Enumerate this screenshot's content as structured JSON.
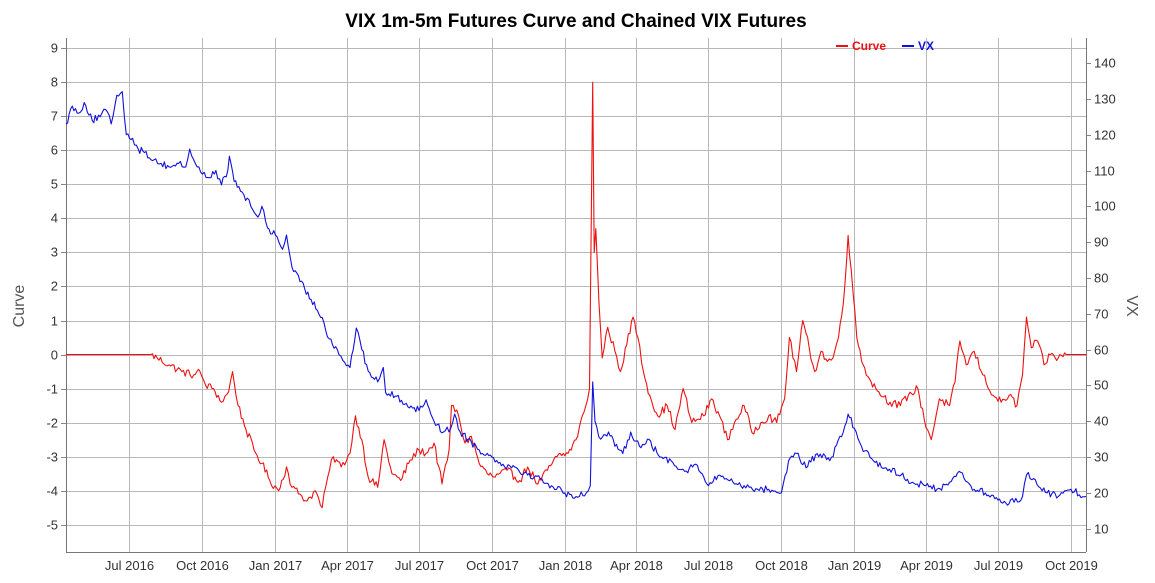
{
  "chart_data": {
    "type": "line",
    "title": "VIX 1m-5m Futures Curve and Chained VIX Futures",
    "y_left_label": "Curve",
    "y_right_label": "VX",
    "y_left_lim": [
      -5.8,
      9.3
    ],
    "y_left_ticks": [
      9,
      8,
      7,
      6,
      5,
      4,
      3,
      2,
      1,
      0,
      -1,
      -2,
      -3,
      -4,
      -5
    ],
    "y_right_lim": [
      3.5,
      147
    ],
    "y_right_ticks": [
      140,
      130,
      120,
      110,
      100,
      90,
      80,
      70,
      60,
      50,
      40,
      30,
      20,
      10
    ],
    "x_lim": [
      "2016-04-12",
      "2019-10-20"
    ],
    "x_ticks": [
      {
        "date": "2016-07-01",
        "label": "Jul 2016"
      },
      {
        "date": "2016-10-01",
        "label": "Oct 2016"
      },
      {
        "date": "2017-01-01",
        "label": "Jan 2017"
      },
      {
        "date": "2017-04-01",
        "label": "Apr 2017"
      },
      {
        "date": "2017-07-01",
        "label": "Jul 2017"
      },
      {
        "date": "2017-10-01",
        "label": "Oct 2017"
      },
      {
        "date": "2018-01-01",
        "label": "Jan 2018"
      },
      {
        "date": "2018-04-01",
        "label": "Apr 2018"
      },
      {
        "date": "2018-07-01",
        "label": "Jul 2018"
      },
      {
        "date": "2018-10-01",
        "label": "Oct 2018"
      },
      {
        "date": "2019-01-01",
        "label": "Jan 2019"
      },
      {
        "date": "2019-04-01",
        "label": "Apr 2019"
      },
      {
        "date": "2019-07-01",
        "label": "Jul 2019"
      },
      {
        "date": "2019-10-01",
        "label": "Oct 2019"
      }
    ],
    "grid": true,
    "legend_position": "top-right",
    "series": [
      {
        "name": "Curve",
        "axis": "left",
        "color": "#ee1111",
        "points": [
          [
            "2016-04-12",
            0
          ],
          [
            "2016-05-15",
            0
          ],
          [
            "2016-06-20",
            0
          ],
          [
            "2016-07-15",
            0
          ],
          [
            "2016-07-28",
            0
          ],
          [
            "2016-08-05",
            -0.1
          ],
          [
            "2016-08-20",
            -0.3
          ],
          [
            "2016-09-05",
            -0.5
          ],
          [
            "2016-09-20",
            -0.6
          ],
          [
            "2016-09-28",
            -0.5
          ],
          [
            "2016-10-05",
            -0.9
          ],
          [
            "2016-10-15",
            -1.0
          ],
          [
            "2016-10-25",
            -1.4
          ],
          [
            "2016-11-03",
            -1.1
          ],
          [
            "2016-11-08",
            -0.5
          ],
          [
            "2016-11-15",
            -1.5
          ],
          [
            "2016-11-25",
            -2.2
          ],
          [
            "2016-12-05",
            -2.8
          ],
          [
            "2016-12-15",
            -3.2
          ],
          [
            "2016-12-25",
            -3.7
          ],
          [
            "2017-01-05",
            -4.0
          ],
          [
            "2017-01-15",
            -3.3
          ],
          [
            "2017-01-22",
            -3.9
          ],
          [
            "2017-02-01",
            -4.1
          ],
          [
            "2017-02-10",
            -4.3
          ],
          [
            "2017-02-20",
            -4.0
          ],
          [
            "2017-03-01",
            -4.5
          ],
          [
            "2017-03-08",
            -3.6
          ],
          [
            "2017-03-15",
            -3.0
          ],
          [
            "2017-03-25",
            -3.3
          ],
          [
            "2017-04-05",
            -2.9
          ],
          [
            "2017-04-12",
            -1.8
          ],
          [
            "2017-04-20",
            -2.5
          ],
          [
            "2017-04-28",
            -3.6
          ],
          [
            "2017-05-10",
            -3.9
          ],
          [
            "2017-05-18",
            -2.5
          ],
          [
            "2017-05-28",
            -3.5
          ],
          [
            "2017-06-08",
            -3.7
          ],
          [
            "2017-06-20",
            -3.1
          ],
          [
            "2017-07-01",
            -2.8
          ],
          [
            "2017-07-10",
            -2.9
          ],
          [
            "2017-07-20",
            -2.6
          ],
          [
            "2017-07-30",
            -3.8
          ],
          [
            "2017-08-08",
            -2.8
          ],
          [
            "2017-08-11",
            -1.5
          ],
          [
            "2017-08-20",
            -1.8
          ],
          [
            "2017-08-28",
            -2.6
          ],
          [
            "2017-09-05",
            -2.4
          ],
          [
            "2017-09-15",
            -3.2
          ],
          [
            "2017-09-25",
            -3.5
          ],
          [
            "2017-10-05",
            -3.6
          ],
          [
            "2017-10-20",
            -3.4
          ],
          [
            "2017-11-05",
            -3.7
          ],
          [
            "2017-11-15",
            -3.3
          ],
          [
            "2017-11-28",
            -3.8
          ],
          [
            "2017-12-10",
            -3.4
          ],
          [
            "2017-12-22",
            -3.0
          ],
          [
            "2018-01-05",
            -2.9
          ],
          [
            "2018-01-15",
            -2.5
          ],
          [
            "2018-01-25",
            -1.7
          ],
          [
            "2018-02-01",
            -1.0
          ],
          [
            "2018-02-05",
            8.0
          ],
          [
            "2018-02-07",
            3.0
          ],
          [
            "2018-02-09",
            3.7
          ],
          [
            "2018-02-13",
            1.5
          ],
          [
            "2018-02-17",
            -0.1
          ],
          [
            "2018-02-24",
            0.8
          ],
          [
            "2018-03-05",
            0.1
          ],
          [
            "2018-03-12",
            -0.5
          ],
          [
            "2018-03-20",
            0.3
          ],
          [
            "2018-03-28",
            1.1
          ],
          [
            "2018-04-03",
            0.5
          ],
          [
            "2018-04-10",
            -0.5
          ],
          [
            "2018-04-18",
            -1.2
          ],
          [
            "2018-04-28",
            -1.8
          ],
          [
            "2018-05-10",
            -1.5
          ],
          [
            "2018-05-20",
            -2.2
          ],
          [
            "2018-05-30",
            -1.0
          ],
          [
            "2018-06-10",
            -2.0
          ],
          [
            "2018-06-25",
            -1.8
          ],
          [
            "2018-07-05",
            -1.3
          ],
          [
            "2018-07-15",
            -1.8
          ],
          [
            "2018-07-25",
            -2.5
          ],
          [
            "2018-08-05",
            -1.9
          ],
          [
            "2018-08-15",
            -1.5
          ],
          [
            "2018-08-25",
            -2.3
          ],
          [
            "2018-09-05",
            -2.0
          ],
          [
            "2018-09-15",
            -1.8
          ],
          [
            "2018-09-25",
            -2.0
          ],
          [
            "2018-10-05",
            -1.3
          ],
          [
            "2018-10-11",
            0.5
          ],
          [
            "2018-10-20",
            -0.5
          ],
          [
            "2018-10-28",
            1.0
          ],
          [
            "2018-11-05",
            0.2
          ],
          [
            "2018-11-12",
            -0.5
          ],
          [
            "2018-11-20",
            0.1
          ],
          [
            "2018-11-28",
            -0.2
          ],
          [
            "2018-12-05",
            -0.1
          ],
          [
            "2018-12-12",
            0.5
          ],
          [
            "2018-12-18",
            1.5
          ],
          [
            "2018-12-24",
            3.5
          ],
          [
            "2018-12-28",
            2.5
          ],
          [
            "2019-01-04",
            0.5
          ],
          [
            "2019-01-12",
            -0.3
          ],
          [
            "2019-01-22",
            -0.8
          ],
          [
            "2019-02-01",
            -1.1
          ],
          [
            "2019-02-15",
            -1.4
          ],
          [
            "2019-02-28",
            -1.5
          ],
          [
            "2019-03-10",
            -1.2
          ],
          [
            "2019-03-22",
            -1.0
          ],
          [
            "2019-03-30",
            -1.9
          ],
          [
            "2019-04-08",
            -2.5
          ],
          [
            "2019-04-18",
            -1.3
          ],
          [
            "2019-05-01",
            -1.5
          ],
          [
            "2019-05-08",
            -0.8
          ],
          [
            "2019-05-14",
            0.4
          ],
          [
            "2019-05-22",
            -0.3
          ],
          [
            "2019-06-01",
            0.1
          ],
          [
            "2019-06-12",
            -0.6
          ],
          [
            "2019-06-25",
            -1.2
          ],
          [
            "2019-07-05",
            -1.4
          ],
          [
            "2019-07-15",
            -1.2
          ],
          [
            "2019-07-25",
            -1.5
          ],
          [
            "2019-08-01",
            -0.6
          ],
          [
            "2019-08-06",
            1.1
          ],
          [
            "2019-08-12",
            0.2
          ],
          [
            "2019-08-20",
            0.4
          ],
          [
            "2019-08-28",
            -0.3
          ],
          [
            "2019-09-05",
            0
          ],
          [
            "2019-09-15",
            -0.1
          ],
          [
            "2019-09-25",
            0
          ],
          [
            "2019-10-05",
            0
          ],
          [
            "2019-10-20",
            0
          ]
        ]
      },
      {
        "name": "VX",
        "axis": "right",
        "color": "#1111dd",
        "points": [
          [
            "2016-04-12",
            123
          ],
          [
            "2016-04-20",
            128
          ],
          [
            "2016-04-28",
            126
          ],
          [
            "2016-05-05",
            129
          ],
          [
            "2016-05-15",
            124
          ],
          [
            "2016-05-25",
            125
          ],
          [
            "2016-06-01",
            127
          ],
          [
            "2016-06-08",
            123
          ],
          [
            "2016-06-15",
            131
          ],
          [
            "2016-06-22",
            132
          ],
          [
            "2016-06-27",
            120
          ],
          [
            "2016-07-05",
            119
          ],
          [
            "2016-07-12",
            116
          ],
          [
            "2016-07-20",
            115
          ],
          [
            "2016-08-01",
            113
          ],
          [
            "2016-08-10",
            112
          ],
          [
            "2016-08-20",
            111
          ],
          [
            "2016-09-01",
            112
          ],
          [
            "2016-09-10",
            111
          ],
          [
            "2016-09-15",
            116
          ],
          [
            "2016-09-22",
            112
          ],
          [
            "2016-10-01",
            109
          ],
          [
            "2016-10-10",
            108
          ],
          [
            "2016-10-18",
            110
          ],
          [
            "2016-10-25",
            106
          ],
          [
            "2016-11-02",
            110
          ],
          [
            "2016-11-04",
            114
          ],
          [
            "2016-11-10",
            107
          ],
          [
            "2016-11-20",
            104
          ],
          [
            "2016-12-01",
            100
          ],
          [
            "2016-12-10",
            97
          ],
          [
            "2016-12-15",
            100
          ],
          [
            "2016-12-22",
            94
          ],
          [
            "2017-01-01",
            92
          ],
          [
            "2017-01-10",
            88
          ],
          [
            "2017-01-15",
            92
          ],
          [
            "2017-01-22",
            83
          ],
          [
            "2017-02-01",
            79
          ],
          [
            "2017-02-15",
            74
          ],
          [
            "2017-03-01",
            69
          ],
          [
            "2017-03-10",
            63
          ],
          [
            "2017-03-20",
            60
          ],
          [
            "2017-03-27",
            57
          ],
          [
            "2017-04-05",
            55
          ],
          [
            "2017-04-13",
            66
          ],
          [
            "2017-04-20",
            60
          ],
          [
            "2017-04-28",
            54
          ],
          [
            "2017-05-10",
            51
          ],
          [
            "2017-05-17",
            55
          ],
          [
            "2017-05-20",
            48
          ],
          [
            "2017-06-01",
            47
          ],
          [
            "2017-06-15",
            45
          ],
          [
            "2017-07-01",
            43
          ],
          [
            "2017-07-10",
            46
          ],
          [
            "2017-07-20",
            40
          ],
          [
            "2017-08-01",
            37
          ],
          [
            "2017-08-10",
            38
          ],
          [
            "2017-08-15",
            42
          ],
          [
            "2017-08-22",
            37
          ],
          [
            "2017-09-01",
            35
          ],
          [
            "2017-09-15",
            32
          ],
          [
            "2017-10-01",
            30
          ],
          [
            "2017-10-15",
            28
          ],
          [
            "2017-11-01",
            27
          ],
          [
            "2017-11-15",
            25
          ],
          [
            "2017-12-01",
            24
          ],
          [
            "2017-12-15",
            22
          ],
          [
            "2018-01-01",
            20
          ],
          [
            "2018-01-15",
            19
          ],
          [
            "2018-01-28",
            20
          ],
          [
            "2018-02-02",
            22
          ],
          [
            "2018-02-05",
            51
          ],
          [
            "2018-02-08",
            40
          ],
          [
            "2018-02-15",
            35
          ],
          [
            "2018-02-25",
            37
          ],
          [
            "2018-03-05",
            33
          ],
          [
            "2018-03-15",
            31
          ],
          [
            "2018-03-25",
            37
          ],
          [
            "2018-04-05",
            33
          ],
          [
            "2018-04-15",
            35
          ],
          [
            "2018-05-01",
            30
          ],
          [
            "2018-05-15",
            29
          ],
          [
            "2018-06-01",
            26
          ],
          [
            "2018-06-15",
            28
          ],
          [
            "2018-07-01",
            22
          ],
          [
            "2018-07-15",
            25
          ],
          [
            "2018-08-01",
            23
          ],
          [
            "2018-08-15",
            22
          ],
          [
            "2018-09-01",
            21
          ],
          [
            "2018-09-15",
            21
          ],
          [
            "2018-10-01",
            20
          ],
          [
            "2018-10-10",
            29
          ],
          [
            "2018-10-20",
            31
          ],
          [
            "2018-11-01",
            27
          ],
          [
            "2018-11-15",
            31
          ],
          [
            "2018-12-01",
            29
          ],
          [
            "2018-12-18",
            37
          ],
          [
            "2018-12-24",
            42
          ],
          [
            "2019-01-01",
            38
          ],
          [
            "2019-01-10",
            33
          ],
          [
            "2019-01-25",
            29
          ],
          [
            "2019-02-10",
            27
          ],
          [
            "2019-03-01",
            25
          ],
          [
            "2019-03-15",
            23
          ],
          [
            "2019-04-01",
            22
          ],
          [
            "2019-04-15",
            21
          ],
          [
            "2019-05-01",
            23
          ],
          [
            "2019-05-13",
            26
          ],
          [
            "2019-06-01",
            21
          ],
          [
            "2019-06-15",
            20
          ],
          [
            "2019-07-01",
            18
          ],
          [
            "2019-07-15",
            17
          ],
          [
            "2019-08-01",
            19
          ],
          [
            "2019-08-06",
            25
          ],
          [
            "2019-08-15",
            24
          ],
          [
            "2019-09-01",
            20
          ],
          [
            "2019-09-15",
            19
          ],
          [
            "2019-10-01",
            21
          ],
          [
            "2019-10-20",
            19
          ]
        ]
      }
    ]
  }
}
